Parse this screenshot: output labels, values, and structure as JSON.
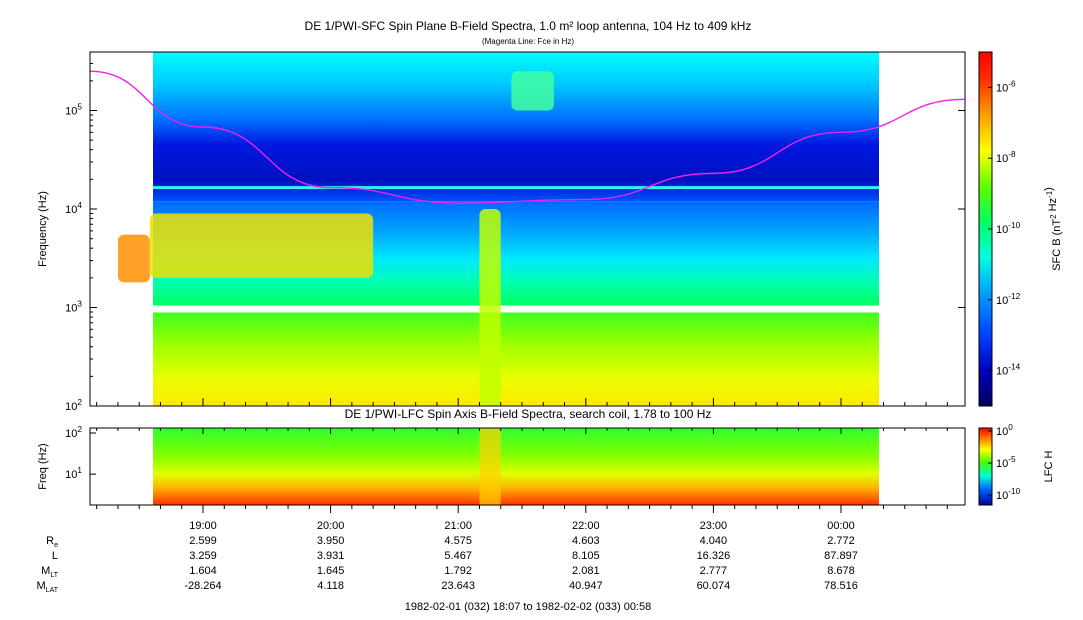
{
  "titles": {
    "main": "DE 1/PWI-SFC  Spin Plane B-Field Spectra, 1.0 m² loop antenna, 104 Hz to 409 kHz",
    "note": "(Magenta Line: Fce in Hz)",
    "lower": "DE 1/PWI-LFC  Spin Axis B-Field Spectra, search coil, 1.78 to 100 Hz"
  },
  "footer": {
    "range": "1982-02-01 (032) 18:07 to 1982-02-02 (033) 00:58"
  },
  "colors": {
    "background": "#ffffff",
    "frame": "#000000",
    "fce_line": "#ee22ee",
    "colormap": [
      "#000080",
      "#0000ff",
      "#0080ff",
      "#00e0ff",
      "#00ff80",
      "#40ff00",
      "#ffff00",
      "#ff8000",
      "#ff0000"
    ]
  },
  "chart_data": [
    {
      "type": "heatmap",
      "title": "DE 1/PWI-SFC  Spin Plane B-Field Spectra, 1.0 m² loop antenna, 104 Hz to 409 kHz",
      "xlabel": "",
      "ylabel": "Frequency (Hz)",
      "y_scale": "log",
      "ylim": [
        100,
        409000
      ],
      "y_ticks": [
        "10",
        "10",
        "10",
        "10"
      ],
      "y_tick_exponents": [
        "2",
        "3",
        "4",
        "5"
      ],
      "x_ticks": [
        "19:00",
        "20:00",
        "21:00",
        "22:00",
        "23:00",
        "00:00"
      ],
      "data_start": "18:07",
      "data_end": "00:58",
      "colorbar": {
        "label": "SFC B (nT",
        "label_exp": "2",
        "label_mid": " Hz",
        "label_exp2": "-1",
        "label_end": ")",
        "scale": "log",
        "range": [
          1e-15,
          1e-05
        ],
        "ticks": [
          "10",
          "10",
          "10",
          "10",
          "10"
        ],
        "tick_exponents": [
          "-6",
          "-8",
          "-10",
          "-12",
          "-14"
        ]
      },
      "fce_line": {
        "name": "Fce in Hz",
        "points": [
          {
            "t": "18:07",
            "f": 250000
          },
          {
            "t": "19:00",
            "f": 68000
          },
          {
            "t": "20:00",
            "f": 16500
          },
          {
            "t": "21:00",
            "f": 11500
          },
          {
            "t": "22:00",
            "f": 12500
          },
          {
            "t": "23:00",
            "f": 23000
          },
          {
            "t": "00:00",
            "f": 60000
          },
          {
            "t": "00:58",
            "f": 130000
          }
        ]
      },
      "features": [
        {
          "kind": "intense emission",
          "t_start": "18:20",
          "t_end": "18:35",
          "f_low": 1800,
          "f_high": 5500
        },
        {
          "kind": "emission band",
          "t_start": "18:35",
          "t_end": "20:20",
          "f_low": 2000,
          "f_high": 9000
        },
        {
          "kind": "low-frequency burst",
          "t_start": "21:10",
          "t_end": "21:20",
          "f_low": 100,
          "f_high": 10000
        },
        {
          "kind": "high-frequency patch",
          "t_start": "21:25",
          "t_end": "21:45",
          "f_low": 100000,
          "f_high": 250000
        }
      ]
    },
    {
      "type": "heatmap",
      "title": "DE 1/PWI-LFC  Spin Axis B-Field Spectra, search coil, 1.78 to 100 Hz",
      "ylabel": "Freq (Hz)",
      "y_scale": "log",
      "ylim": [
        1.78,
        100
      ],
      "y_ticks": [
        "10",
        "10"
      ],
      "y_tick_exponents": [
        "1",
        "2"
      ],
      "colorbar": {
        "label": "LFC H",
        "scale": "log",
        "range": [
          1e-12,
          1
        ],
        "ticks": [
          "10",
          "10",
          "10"
        ],
        "tick_exponents": [
          "0",
          "-5",
          "-10"
        ]
      }
    }
  ],
  "ephemeris": {
    "labels": [
      {
        "main": "R",
        "sub": "e"
      },
      {
        "main": "L",
        "sub": ""
      },
      {
        "main": "M",
        "sub": "LT"
      },
      {
        "main": "M",
        "sub": "LAT"
      }
    ],
    "rows": [
      [
        "2.599",
        "3.950",
        "4.575",
        "4.603",
        "4.040",
        "2.772"
      ],
      [
        "3.259",
        "3.931",
        "5.467",
        "8.105",
        "16.326",
        "87.897"
      ],
      [
        "1.604",
        "1.645",
        "1.792",
        "2.081",
        "2.777",
        "8.678"
      ],
      [
        "-28.264",
        "4.118",
        "23.643",
        "40.947",
        "60.074",
        "78.516"
      ]
    ]
  }
}
